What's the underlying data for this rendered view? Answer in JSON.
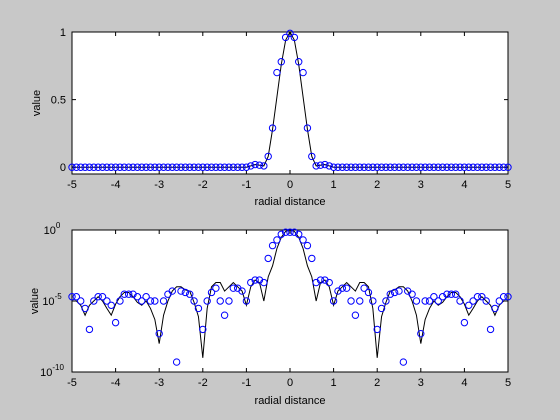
{
  "colors": {
    "figure_bg": "#c8c8c8",
    "axes_bg": "#ffffff",
    "line": "#000000",
    "markers": "#0000ff"
  },
  "chart_data": [
    {
      "type": "line",
      "title": "",
      "xlabel": "radial distance",
      "ylabel": "value",
      "xlim": [
        -5,
        5
      ],
      "ylim": [
        -0.05,
        1
      ],
      "yscale": "linear",
      "xticks": [
        -5,
        -4,
        -3,
        -2,
        -1,
        0,
        1,
        2,
        3,
        4,
        5
      ],
      "xtick_labels": [
        "-5",
        "-4",
        "-3",
        "-2",
        "-1",
        "0",
        "1",
        "2",
        "3",
        "4",
        "5"
      ],
      "yticks": [
        0,
        0.5,
        1
      ],
      "ytick_labels": [
        "0",
        "0.5",
        "1"
      ],
      "grid": false,
      "legend": "none",
      "series": [
        {
          "style": "solid black line (continuous curve)",
          "x": [
            -5,
            -4.5,
            -4,
            -3.5,
            -3,
            -2.5,
            -2,
            -1.5,
            -1,
            -0.8,
            -0.6,
            -0.5,
            -0.4,
            -0.3,
            -0.2,
            -0.1,
            0,
            0.1,
            0.2,
            0.3,
            0.4,
            0.5,
            0.6,
            0.8,
            1,
            1.5,
            2,
            2.5,
            3,
            3.5,
            4,
            4.5,
            5
          ],
          "y": [
            0,
            0,
            0,
            0,
            0,
            0,
            0,
            0,
            0,
            0.02,
            0.01,
            0.08,
            0.28,
            0.52,
            0.76,
            0.94,
            1,
            0.94,
            0.76,
            0.52,
            0.28,
            0.08,
            0.01,
            0.02,
            0,
            0,
            0,
            0,
            0,
            0,
            0,
            0,
            0
          ]
        },
        {
          "style": "blue open circles",
          "x": [
            -5,
            -4.9,
            -4.8,
            -4.7,
            -4.6,
            -4.5,
            -4.4,
            -4.3,
            -4.2,
            -4.1,
            -4,
            -3.9,
            -3.8,
            -3.7,
            -3.6,
            -3.5,
            -3.4,
            -3.3,
            -3.2,
            -3.1,
            -3,
            -2.9,
            -2.8,
            -2.7,
            -2.6,
            -2.5,
            -2.4,
            -2.3,
            -2.2,
            -2.1,
            -2,
            -1.9,
            -1.8,
            -1.7,
            -1.6,
            -1.5,
            -1.4,
            -1.3,
            -1.2,
            -1.1,
            -1,
            -0.9,
            -0.8,
            -0.7,
            -0.6,
            -0.5,
            -0.4,
            -0.3,
            -0.2,
            -0.1,
            0,
            0.1,
            0.2,
            0.3,
            0.4,
            0.5,
            0.6,
            0.7,
            0.8,
            0.9,
            1,
            1.1,
            1.2,
            1.3,
            1.4,
            1.5,
            1.6,
            1.7,
            1.8,
            1.9,
            2,
            2.1,
            2.2,
            2.3,
            2.4,
            2.5,
            2.6,
            2.7,
            2.8,
            2.9,
            3,
            3.1,
            3.2,
            3.3,
            3.4,
            3.5,
            3.6,
            3.7,
            3.8,
            3.9,
            4,
            4.1,
            4.2,
            4.3,
            4.4,
            4.5,
            4.6,
            4.7,
            4.8,
            4.9,
            5
          ],
          "y": [
            0,
            0,
            0,
            0,
            0,
            0,
            0,
            0,
            0,
            0,
            0,
            0,
            0,
            0,
            0,
            0,
            0,
            0,
            0,
            0,
            0,
            0,
            0,
            0,
            0,
            0,
            0,
            0,
            0,
            0,
            0,
            0,
            0,
            0,
            0,
            0,
            0,
            0,
            0,
            0,
            0,
            0.01,
            0.02,
            0.015,
            0.01,
            0.08,
            0.29,
            0.7,
            0.78,
            0.96,
            0.99,
            0.96,
            0.78,
            0.7,
            0.29,
            0.08,
            0.01,
            0.015,
            0.02,
            0.01,
            0,
            0,
            0,
            0,
            0,
            0,
            0,
            0,
            0,
            0,
            0,
            0,
            0,
            0,
            0,
            0,
            0,
            0,
            0,
            0,
            0,
            0,
            0,
            0,
            0,
            0,
            0,
            0,
            0,
            0,
            0,
            0,
            0,
            0,
            0,
            0,
            0,
            0,
            0,
            0,
            0
          ]
        }
      ]
    },
    {
      "type": "line",
      "title": "",
      "xlabel": "radial distance",
      "ylabel": "value",
      "xlim": [
        -5,
        5
      ],
      "ylim": [
        1e-10,
        1
      ],
      "yscale": "log",
      "xticks": [
        -5,
        -4,
        -3,
        -2,
        -1,
        0,
        1,
        2,
        3,
        4,
        5
      ],
      "xtick_labels": [
        "-5",
        "-4",
        "-3",
        "-2",
        "-1",
        "0",
        "1",
        "2",
        "3",
        "4",
        "5"
      ],
      "yticks": [
        1e-10,
        1e-05,
        1
      ],
      "ytick_labels": [
        {
          "base": "10",
          "exp": "-10"
        },
        {
          "base": "10",
          "exp": "-5"
        },
        {
          "base": "10",
          "exp": "0"
        }
      ],
      "grid": false,
      "legend": "none",
      "series": [
        {
          "style": "solid black line (continuous curve)",
          "x": [
            -5,
            -4.9,
            -4.8,
            -4.7,
            -4.6,
            -4.5,
            -4.4,
            -4.3,
            -4.2,
            -4.1,
            -4,
            -3.9,
            -3.8,
            -3.7,
            -3.6,
            -3.5,
            -3.4,
            -3.3,
            -3.2,
            -3.1,
            -3,
            -2.9,
            -2.8,
            -2.7,
            -2.6,
            -2.5,
            -2.4,
            -2.3,
            -2.2,
            -2.1,
            -2,
            -1.9,
            -1.8,
            -1.7,
            -1.6,
            -1.5,
            -1.4,
            -1.3,
            -1.2,
            -1.1,
            -1,
            -0.9,
            -0.8,
            -0.7,
            -0.6,
            -0.5,
            -0.4,
            -0.3,
            -0.2,
            -0.1,
            0,
            0.1,
            0.2,
            0.3,
            0.4,
            0.5,
            0.6,
            0.7,
            0.8,
            0.9,
            1,
            1.1,
            1.2,
            1.3,
            1.4,
            1.5,
            1.6,
            1.7,
            1.8,
            1.9,
            2,
            2.1,
            2.2,
            2.3,
            2.4,
            2.5,
            2.6,
            2.7,
            2.8,
            2.9,
            3,
            3.1,
            3.2,
            3.3,
            3.4,
            3.5,
            3.6,
            3.7,
            3.8,
            3.9,
            4,
            4.1,
            4.2,
            4.3,
            4.4,
            4.5,
            4.6,
            4.7,
            4.8,
            4.9,
            5
          ],
          "y": [
            1e-05,
            1e-05,
            5e-06,
            1e-06,
            5e-06,
            1e-05,
            2e-05,
            1e-05,
            3e-06,
            1e-06,
            6e-06,
            2e-05,
            4e-05,
            4e-05,
            2e-05,
            8e-06,
            5e-06,
            1e-05,
            3e-06,
            5e-07,
            1e-08,
            1e-06,
            1e-05,
            5e-05,
            0.0001,
            0.0001,
            6e-05,
            5e-05,
            8e-06,
            8e-07,
            1e-09,
            3e-06,
            0.0001,
            0.0002,
            0.0002,
            5e-05,
            0.0001,
            0.0002,
            0.0001,
            5e-05,
            5e-06,
            0.0001,
            0.0003,
            0.0002,
            1e-05,
            0.0005,
            0.003,
            0.05,
            0.3,
            0.8,
            1,
            0.8,
            0.3,
            0.05,
            0.003,
            0.0005,
            1e-05,
            0.0002,
            0.0003,
            0.0001,
            5e-06,
            5e-05,
            0.0001,
            0.0002,
            0.0001,
            5e-05,
            0.0002,
            0.0002,
            0.0001,
            3e-06,
            1e-09,
            8e-07,
            8e-06,
            5e-05,
            6e-05,
            0.0001,
            0.0001,
            5e-05,
            1e-05,
            1e-06,
            1e-08,
            5e-07,
            3e-06,
            1e-05,
            5e-06,
            8e-06,
            2e-05,
            4e-05,
            4e-05,
            2e-05,
            6e-06,
            1e-06,
            3e-06,
            1e-05,
            2e-05,
            1e-05,
            5e-06,
            1e-06,
            5e-06,
            1e-05,
            1e-05
          ]
        },
        {
          "style": "blue open circles",
          "x": [
            -5,
            -4.9,
            -4.8,
            -4.7,
            -4.6,
            -4.5,
            -4.4,
            -4.3,
            -4.2,
            -4.1,
            -4,
            -3.9,
            -3.8,
            -3.7,
            -3.6,
            -3.5,
            -3.4,
            -3.3,
            -3.2,
            -3.1,
            -3,
            -2.9,
            -2.8,
            -2.7,
            -2.6,
            -2.5,
            -2.4,
            -2.3,
            -2.2,
            -2.1,
            -2,
            -1.9,
            -1.8,
            -1.7,
            -1.6,
            -1.5,
            -1.4,
            -1.3,
            -1.2,
            -1.1,
            -1,
            -0.9,
            -0.8,
            -0.7,
            -0.6,
            -0.5,
            -0.4,
            -0.3,
            -0.2,
            -0.1,
            0,
            0.1,
            0.2,
            0.3,
            0.4,
            0.5,
            0.6,
            0.7,
            0.8,
            0.9,
            1,
            1.1,
            1.2,
            1.3,
            1.4,
            1.5,
            1.6,
            1.7,
            1.8,
            1.9,
            2,
            2.1,
            2.2,
            2.3,
            2.4,
            2.5,
            2.6,
            2.7,
            2.8,
            2.9,
            3,
            3.1,
            3.2,
            3.3,
            3.4,
            3.5,
            3.6,
            3.7,
            3.8,
            3.9,
            4,
            4.1,
            4.2,
            4.3,
            4.4,
            4.5,
            4.6,
            4.7,
            4.8,
            4.9,
            5
          ],
          "y": [
            2e-05,
            2e-05,
            1e-05,
            3e-06,
            1e-07,
            1e-05,
            2e-05,
            2e-05,
            1e-05,
            5e-06,
            3e-07,
            1e-05,
            3e-05,
            3e-05,
            3e-05,
            2e-05,
            1e-05,
            2e-05,
            1e-05,
            1e-05,
            5e-08,
            1e-05,
            3e-05,
            5e-05,
            5e-10,
            5e-05,
            4e-05,
            3e-05,
            1e-05,
            3e-06,
            1e-07,
            1e-05,
            4e-05,
            8e-05,
            1e-05,
            1e-06,
            1e-05,
            8e-05,
            8e-05,
            5e-05,
            1e-05,
            0.0002,
            0.0003,
            0.0003,
            0.0002,
            0.01,
            0.08,
            0.2,
            0.5,
            0.7,
            0.7,
            0.7,
            0.5,
            0.2,
            0.08,
            0.01,
            0.0002,
            0.0003,
            0.0003,
            0.0002,
            1e-05,
            5e-05,
            8e-05,
            8e-05,
            1e-05,
            1e-06,
            1e-05,
            8e-05,
            4e-05,
            1e-05,
            1e-07,
            3e-06,
            1e-05,
            3e-05,
            4e-05,
            5e-05,
            5e-10,
            5e-05,
            3e-05,
            1e-05,
            5e-08,
            1e-05,
            1e-05,
            2e-05,
            1e-05,
            2e-05,
            3e-05,
            3e-05,
            3e-05,
            1e-05,
            3e-07,
            5e-06,
            1e-05,
            2e-05,
            2e-05,
            1e-05,
            1e-07,
            3e-06,
            1e-05,
            2e-05,
            2e-05
          ]
        }
      ]
    }
  ]
}
